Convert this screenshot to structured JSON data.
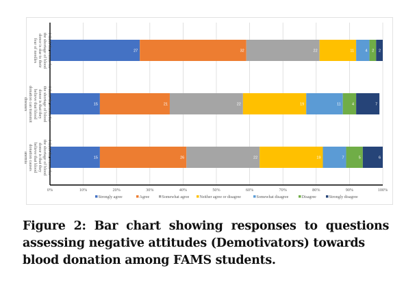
{
  "chart_data": {
    "type": "bar",
    "orientation": "horizontal",
    "stacked": "100%",
    "title": "",
    "xlabel": "",
    "ylabel": "",
    "xlim": [
      0,
      100
    ],
    "x_ticks": [
      "0%",
      "10%",
      "20%",
      "30%",
      "40%",
      "50%",
      "60%",
      "70%",
      "80%",
      "90%",
      "100%"
    ],
    "grid": true,
    "legend_position": "bottom",
    "categories": [
      "I think the reason for the shortage of blood donor is due to their fear of needles",
      "I think the reason for the shortage of blood donor is that they believe that blood donation can transmit diseases",
      "I think the reason for the shortage of blood donor is that they believe that blood donation causes anemia"
    ],
    "series": [
      {
        "name": "Strongly agree",
        "color": "#4472C4",
        "values": [
          27,
          15,
          15
        ]
      },
      {
        "name": "Agree",
        "color": "#ED7D31",
        "values": [
          32,
          21,
          26
        ]
      },
      {
        "name": "Somewhat agree",
        "color": "#A5A5A5",
        "values": [
          22,
          22,
          22
        ]
      },
      {
        "name": "Neither agree or disagree",
        "color": "#FFC000",
        "values": [
          11,
          19,
          19
        ]
      },
      {
        "name": "Somewhat disagree",
        "color": "#5B9BD5",
        "values": [
          4,
          11,
          7
        ]
      },
      {
        "name": "Disagree",
        "color": "#70AD47",
        "values": [
          2,
          4,
          5
        ]
      },
      {
        "name": "Strongly disagree",
        "color": "#264478",
        "values": [
          2,
          7,
          6
        ]
      }
    ]
  },
  "caption": {
    "main": "Figure 2: Bar chart showing responses to questions assessing negative attitudes (Demotivators) towards",
    "last": "blood donation among FAMS students."
  }
}
